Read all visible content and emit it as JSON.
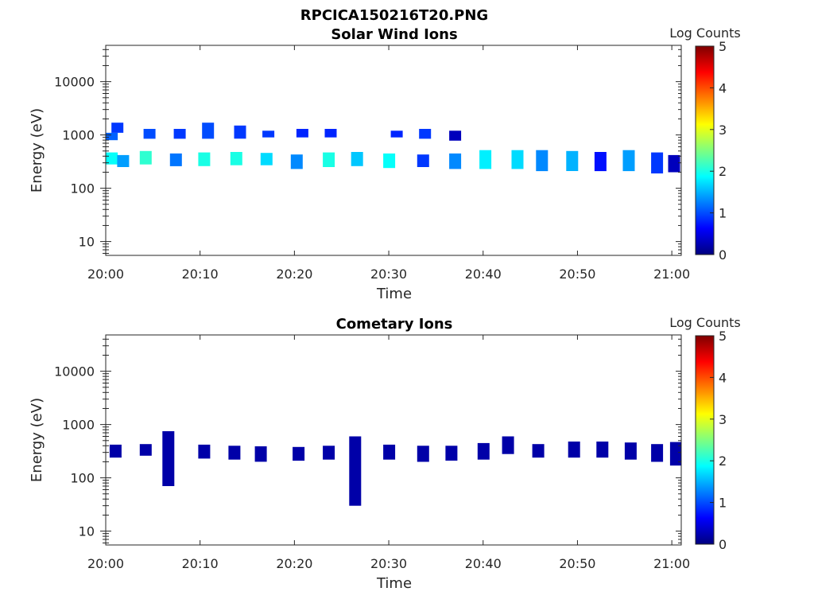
{
  "figure": {
    "title": "RPCICA150216T20.PNG"
  },
  "colormap": {
    "stops": [
      "#00007f",
      "#0000ff",
      "#007fff",
      "#00ffff",
      "#7fff7f",
      "#ffff00",
      "#ff7f00",
      "#ff0000",
      "#7f0000"
    ]
  },
  "chart_data": [
    {
      "type": "heatmap",
      "title": "Solar Wind Ions",
      "xlabel": "Time",
      "ylabel": "Energy (eV)",
      "y_scale": "log",
      "xlim": [
        "20:00",
        "21:01"
      ],
      "ylim": [
        5.5,
        48000
      ],
      "x_ticks": [
        "20:00",
        "20:10",
        "20:20",
        "20:30",
        "20:40",
        "20:50",
        "21:00"
      ],
      "y_ticks": [
        {
          "value": 10,
          "label": "10"
        },
        {
          "value": 100,
          "label": "100"
        },
        {
          "value": 1000,
          "label": "1000"
        },
        {
          "value": 10000,
          "label": "10000"
        }
      ],
      "colorbar": {
        "label": "Log Counts",
        "min": 0,
        "max": 5,
        "ticks": [
          "0",
          "1",
          "2",
          "3",
          "4",
          "5"
        ]
      },
      "cells": [
        {
          "t": 0.6,
          "e_lo": 280,
          "e_hi": 470,
          "log_counts": 1.9
        },
        {
          "t": 0.6,
          "e_lo": 800,
          "e_hi": 1100,
          "log_counts": 1.1
        },
        {
          "t": 1.2,
          "e_lo": 1100,
          "e_hi": 1700,
          "log_counts": 0.9
        },
        {
          "t": 1.8,
          "e_lo": 250,
          "e_hi": 420,
          "log_counts": 1.4
        },
        {
          "t": 4.2,
          "e_lo": 280,
          "e_hi": 500,
          "log_counts": 2.1
        },
        {
          "t": 4.6,
          "e_lo": 850,
          "e_hi": 1300,
          "log_counts": 1.0
        },
        {
          "t": 7.4,
          "e_lo": 260,
          "e_hi": 450,
          "log_counts": 1.2
        },
        {
          "t": 7.8,
          "e_lo": 850,
          "e_hi": 1300,
          "log_counts": 0.9
        },
        {
          "t": 10.4,
          "e_lo": 260,
          "e_hi": 470,
          "log_counts": 2.0
        },
        {
          "t": 10.8,
          "e_lo": 850,
          "e_hi": 1700,
          "log_counts": 1.0
        },
        {
          "t": 13.8,
          "e_lo": 270,
          "e_hi": 480,
          "log_counts": 2.0
        },
        {
          "t": 14.2,
          "e_lo": 850,
          "e_hi": 1500,
          "log_counts": 0.9
        },
        {
          "t": 17.0,
          "e_lo": 270,
          "e_hi": 460,
          "log_counts": 1.7
        },
        {
          "t": 17.2,
          "e_lo": 900,
          "e_hi": 1200,
          "log_counts": 0.9
        },
        {
          "t": 20.2,
          "e_lo": 230,
          "e_hi": 430,
          "log_counts": 1.3
        },
        {
          "t": 20.8,
          "e_lo": 900,
          "e_hi": 1300,
          "log_counts": 0.8
        },
        {
          "t": 23.6,
          "e_lo": 250,
          "e_hi": 470,
          "log_counts": 2.0
        },
        {
          "t": 23.8,
          "e_lo": 900,
          "e_hi": 1300,
          "log_counts": 0.8
        },
        {
          "t": 26.6,
          "e_lo": 260,
          "e_hi": 480,
          "log_counts": 1.6
        },
        {
          "t": 30.0,
          "e_lo": 240,
          "e_hi": 450,
          "log_counts": 1.9
        },
        {
          "t": 30.8,
          "e_lo": 900,
          "e_hi": 1200,
          "log_counts": 0.8
        },
        {
          "t": 33.6,
          "e_lo": 250,
          "e_hi": 430,
          "log_counts": 0.9
        },
        {
          "t": 33.8,
          "e_lo": 850,
          "e_hi": 1300,
          "log_counts": 0.9
        },
        {
          "t": 37.0,
          "e_lo": 230,
          "e_hi": 450,
          "log_counts": 1.3
        },
        {
          "t": 37.0,
          "e_lo": 780,
          "e_hi": 1200,
          "log_counts": 0.3
        },
        {
          "t": 40.2,
          "e_lo": 230,
          "e_hi": 520,
          "log_counts": 1.8
        },
        {
          "t": 43.6,
          "e_lo": 230,
          "e_hi": 520,
          "log_counts": 1.7
        },
        {
          "t": 46.2,
          "e_lo": 210,
          "e_hi": 520,
          "log_counts": 1.3
        },
        {
          "t": 49.4,
          "e_lo": 210,
          "e_hi": 500,
          "log_counts": 1.5
        },
        {
          "t": 52.4,
          "e_lo": 210,
          "e_hi": 480,
          "log_counts": 0.7
        },
        {
          "t": 55.4,
          "e_lo": 210,
          "e_hi": 520,
          "log_counts": 1.4
        },
        {
          "t": 58.4,
          "e_lo": 190,
          "e_hi": 470,
          "log_counts": 0.9
        },
        {
          "t": 60.2,
          "e_lo": 200,
          "e_hi": 420,
          "log_counts": 0.3
        }
      ]
    },
    {
      "type": "heatmap",
      "title": "Cometary Ions",
      "xlabel": "Time",
      "ylabel": "Energy (eV)",
      "y_scale": "log",
      "xlim": [
        "20:00",
        "21:01"
      ],
      "ylim": [
        5.5,
        48000
      ],
      "x_ticks": [
        "20:00",
        "20:10",
        "20:20",
        "20:30",
        "20:40",
        "20:50",
        "21:00"
      ],
      "y_ticks": [
        {
          "value": 10,
          "label": "10"
        },
        {
          "value": 100,
          "label": "100"
        },
        {
          "value": 1000,
          "label": "1000"
        },
        {
          "value": 10000,
          "label": "10000"
        }
      ],
      "colorbar": {
        "label": "Log Counts",
        "min": 0,
        "max": 5,
        "ticks": [
          "0",
          "1",
          "2",
          "3",
          "4",
          "5"
        ]
      },
      "cells": [
        {
          "t": 1.0,
          "e_lo": 240,
          "e_hi": 420,
          "log_counts": 0.2
        },
        {
          "t": 4.2,
          "e_lo": 260,
          "e_hi": 430,
          "log_counts": 0.2
        },
        {
          "t": 6.6,
          "e_lo": 70,
          "e_hi": 750,
          "log_counts": 0.2
        },
        {
          "t": 10.4,
          "e_lo": 230,
          "e_hi": 420,
          "log_counts": 0.2
        },
        {
          "t": 13.6,
          "e_lo": 220,
          "e_hi": 400,
          "log_counts": 0.2
        },
        {
          "t": 16.4,
          "e_lo": 200,
          "e_hi": 390,
          "log_counts": 0.2
        },
        {
          "t": 20.4,
          "e_lo": 210,
          "e_hi": 380,
          "log_counts": 0.2
        },
        {
          "t": 23.6,
          "e_lo": 220,
          "e_hi": 400,
          "log_counts": 0.2
        },
        {
          "t": 26.4,
          "e_lo": 30,
          "e_hi": 600,
          "log_counts": 0.2
        },
        {
          "t": 30.0,
          "e_lo": 220,
          "e_hi": 420,
          "log_counts": 0.2
        },
        {
          "t": 33.6,
          "e_lo": 200,
          "e_hi": 400,
          "log_counts": 0.2
        },
        {
          "t": 36.6,
          "e_lo": 210,
          "e_hi": 400,
          "log_counts": 0.2
        },
        {
          "t": 40.0,
          "e_lo": 220,
          "e_hi": 450,
          "log_counts": 0.2
        },
        {
          "t": 42.6,
          "e_lo": 280,
          "e_hi": 600,
          "log_counts": 0.2
        },
        {
          "t": 45.8,
          "e_lo": 240,
          "e_hi": 430,
          "log_counts": 0.2
        },
        {
          "t": 49.6,
          "e_lo": 240,
          "e_hi": 480,
          "log_counts": 0.2
        },
        {
          "t": 52.6,
          "e_lo": 240,
          "e_hi": 480,
          "log_counts": 0.2
        },
        {
          "t": 55.6,
          "e_lo": 220,
          "e_hi": 460,
          "log_counts": 0.2
        },
        {
          "t": 58.4,
          "e_lo": 200,
          "e_hi": 430,
          "log_counts": 0.2
        },
        {
          "t": 60.4,
          "e_lo": 170,
          "e_hi": 470,
          "log_counts": 0.2
        }
      ]
    }
  ]
}
